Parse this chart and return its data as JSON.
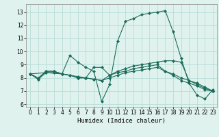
{
  "xlabel": "Humidex (Indice chaleur)",
  "bg_color": "#dff2ee",
  "grid_color": "#b8ddd8",
  "line_color": "#1a6b5a",
  "xlim": [
    -0.5,
    23.5
  ],
  "ylim": [
    5.8,
    13.6
  ],
  "yticks": [
    6,
    7,
    8,
    9,
    10,
    11,
    12,
    13
  ],
  "xticks": [
    0,
    1,
    2,
    3,
    4,
    5,
    6,
    7,
    8,
    9,
    10,
    11,
    12,
    13,
    14,
    15,
    16,
    17,
    18,
    19,
    20,
    21,
    22,
    23
  ],
  "series1": [
    [
      0,
      8.3
    ],
    [
      1,
      7.9
    ],
    [
      2,
      8.5
    ],
    [
      3,
      8.5
    ],
    [
      4,
      8.3
    ],
    [
      5,
      9.7
    ],
    [
      6,
      9.2
    ],
    [
      7,
      8.8
    ],
    [
      8,
      8.5
    ],
    [
      9,
      6.2
    ],
    [
      10,
      7.5
    ],
    [
      11,
      10.8
    ],
    [
      12,
      12.3
    ],
    [
      13,
      12.5
    ],
    [
      14,
      12.8
    ],
    [
      15,
      12.9
    ],
    [
      16,
      13.0
    ],
    [
      17,
      13.1
    ],
    [
      18,
      11.5
    ],
    [
      19,
      9.5
    ],
    [
      20,
      7.6
    ],
    [
      21,
      6.7
    ],
    [
      22,
      6.4
    ],
    [
      23,
      7.1
    ]
  ],
  "series2": [
    [
      0,
      8.3
    ],
    [
      1,
      8.0
    ],
    [
      2,
      8.5
    ],
    [
      3,
      8.5
    ],
    [
      4,
      8.3
    ],
    [
      5,
      8.2
    ],
    [
      6,
      8.1
    ],
    [
      7,
      8.0
    ],
    [
      8,
      7.9
    ],
    [
      9,
      7.8
    ],
    [
      10,
      8.2
    ],
    [
      11,
      8.5
    ],
    [
      12,
      8.7
    ],
    [
      13,
      8.9
    ],
    [
      14,
      9.0
    ],
    [
      15,
      9.1
    ],
    [
      16,
      9.2
    ],
    [
      17,
      9.3
    ],
    [
      18,
      9.3
    ],
    [
      19,
      9.2
    ],
    [
      20,
      7.8
    ],
    [
      21,
      7.6
    ],
    [
      22,
      7.3
    ],
    [
      23,
      7.0
    ]
  ],
  "series3": [
    [
      0,
      8.3
    ],
    [
      1,
      7.9
    ],
    [
      2,
      8.4
    ],
    [
      3,
      8.4
    ],
    [
      4,
      8.3
    ],
    [
      5,
      8.2
    ],
    [
      6,
      8.0
    ],
    [
      7,
      8.0
    ],
    [
      8,
      7.9
    ],
    [
      9,
      7.8
    ],
    [
      10,
      8.0
    ],
    [
      11,
      8.2
    ],
    [
      12,
      8.4
    ],
    [
      13,
      8.5
    ],
    [
      14,
      8.6
    ],
    [
      15,
      8.7
    ],
    [
      16,
      8.8
    ],
    [
      17,
      8.5
    ],
    [
      18,
      8.3
    ],
    [
      19,
      8.0
    ],
    [
      20,
      7.8
    ],
    [
      21,
      7.5
    ],
    [
      22,
      7.2
    ],
    [
      23,
      7.0
    ]
  ],
  "series4": [
    [
      0,
      8.3
    ],
    [
      2,
      8.4
    ],
    [
      4,
      8.3
    ],
    [
      5,
      8.2
    ],
    [
      6,
      8.0
    ],
    [
      7,
      8.0
    ],
    [
      8,
      8.8
    ],
    [
      9,
      8.8
    ],
    [
      10,
      8.2
    ],
    [
      11,
      8.4
    ],
    [
      12,
      8.5
    ],
    [
      13,
      8.7
    ],
    [
      14,
      8.8
    ],
    [
      15,
      8.9
    ],
    [
      16,
      9.0
    ],
    [
      17,
      8.5
    ],
    [
      18,
      8.2
    ],
    [
      19,
      7.8
    ],
    [
      20,
      7.6
    ],
    [
      21,
      7.4
    ],
    [
      22,
      7.1
    ],
    [
      23,
      7.0
    ]
  ]
}
